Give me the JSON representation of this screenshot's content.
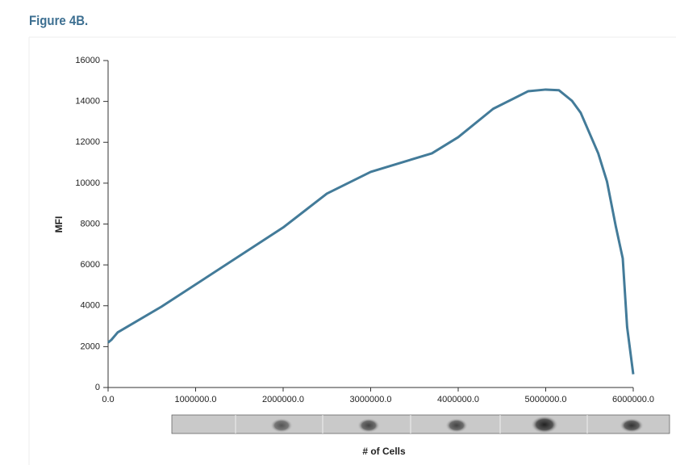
{
  "chart_data": {
    "type": "line",
    "title": "Figure 4B.",
    "xlabel": "# of Cells",
    "ylabel": "MFI",
    "x": [
      0,
      37000,
      110000,
      608000,
      2000000,
      2500000,
      3000000,
      3700000,
      4000000,
      4400000,
      4800000,
      5000000,
      5150000,
      5300000,
      5400000,
      5600000,
      5700000,
      5800000,
      5880000,
      5930000,
      6000000
    ],
    "series": [
      {
        "name": "MFI",
        "color": "#437b99",
        "values": [
          2200,
          2330,
          2700,
          3950,
          7830,
          9490,
          10550,
          11460,
          12250,
          13640,
          14500,
          14580,
          14550,
          14030,
          13440,
          11460,
          10080,
          7900,
          6320,
          2960,
          650
        ]
      }
    ],
    "xlim": [
      0,
      6000000
    ],
    "ylim": [
      0,
      16000
    ],
    "xticks": [
      {
        "value": 0,
        "label": "0.0"
      },
      {
        "value": 1000000,
        "label": "1000000.0"
      },
      {
        "value": 2000000,
        "label": "2000000.0"
      },
      {
        "value": 3000000,
        "label": "3000000.0"
      },
      {
        "value": 4000000,
        "label": "4000000.0"
      },
      {
        "value": 5000000,
        "label": "5000000.0"
      },
      {
        "value": 6000000,
        "label": "6000000.0"
      }
    ],
    "yticks": [
      0,
      2000,
      4000,
      6000,
      8000,
      10000,
      12000,
      14000,
      16000
    ]
  }
}
